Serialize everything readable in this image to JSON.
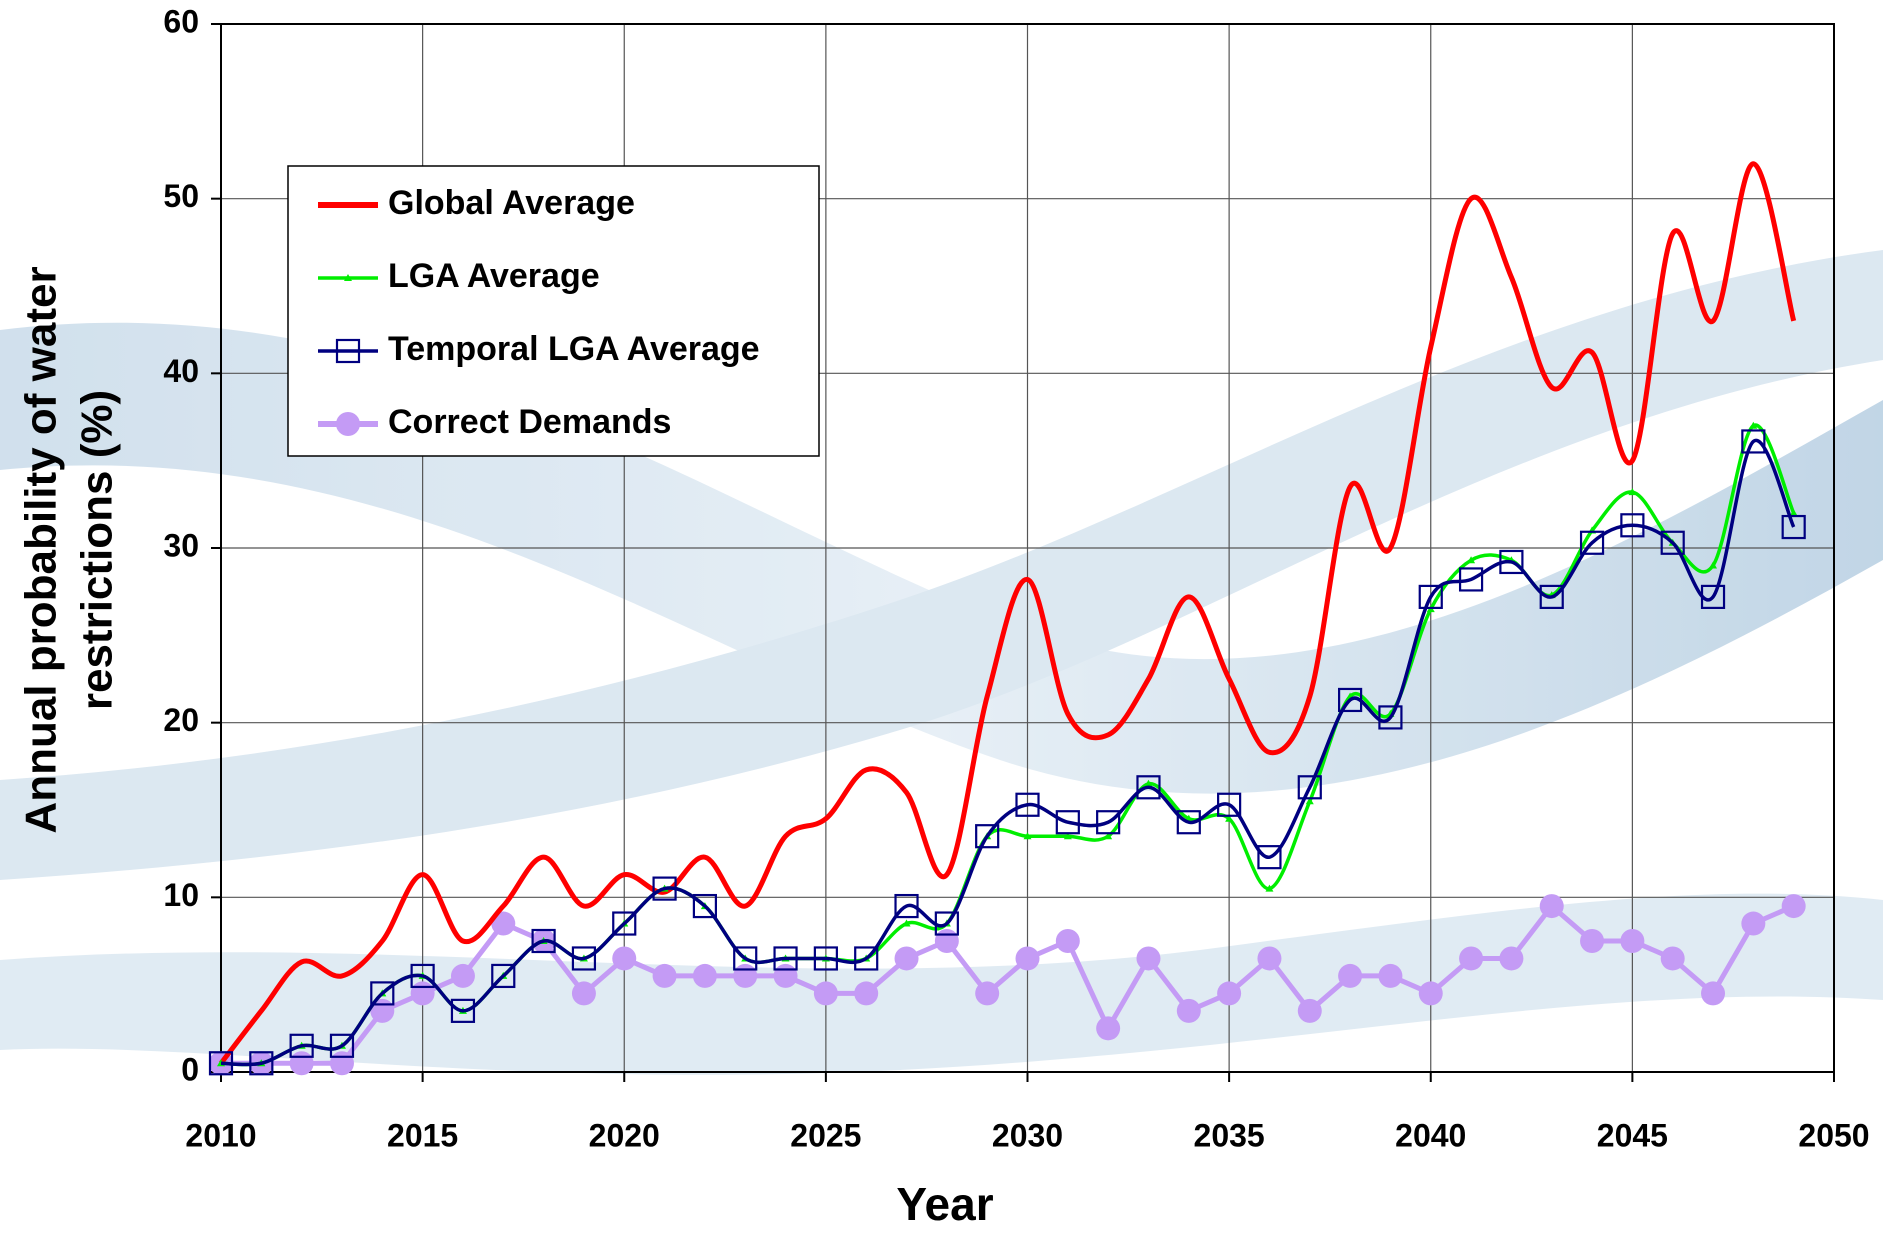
{
  "chart_data": {
    "type": "line",
    "x_label": "Year",
    "y_label": [
      "Annual probability of water",
      "restrictions (%)"
    ],
    "x": [
      2010,
      2011,
      2012,
      2013,
      2014,
      2015,
      2016,
      2017,
      2018,
      2019,
      2020,
      2021,
      2022,
      2023,
      2024,
      2025,
      2026,
      2027,
      2028,
      2029,
      2030,
      2031,
      2032,
      2033,
      2034,
      2035,
      2036,
      2037,
      2038,
      2039,
      2040,
      2041,
      2042,
      2043,
      2044,
      2045,
      2046,
      2047,
      2048,
      2049
    ],
    "xlim": [
      2010,
      2050
    ],
    "xticks": [
      2010,
      2015,
      2020,
      2025,
      2030,
      2035,
      2040,
      2045,
      2050
    ],
    "ylim": [
      0,
      60
    ],
    "yticks": [
      0,
      10,
      20,
      30,
      40,
      50,
      60
    ],
    "grid": true,
    "legend": "upper left",
    "series": [
      {
        "name": "Global Average",
        "color": "#ff0000",
        "marker": "none",
        "smooth": true,
        "values": [
          0.5,
          3.5,
          6.3,
          5.5,
          7.5,
          11.3,
          7.5,
          9.5,
          12.3,
          9.5,
          11.3,
          10.3,
          12.3,
          9.5,
          13.5,
          14.5,
          17.3,
          16,
          11.3,
          21.5,
          28.2,
          20.5,
          19.3,
          22.5,
          27.2,
          22.5,
          18.3,
          21.5,
          33.5,
          30,
          41.5,
          50,
          45.5,
          39.2,
          41.2,
          35,
          48,
          43,
          52,
          43
        ]
      },
      {
        "name": "LGA Average",
        "color": "#00ee00",
        "marker": "triangle",
        "smooth": true,
        "values": [
          0.5,
          0.5,
          1.5,
          1.5,
          4.5,
          5.5,
          3.5,
          5.5,
          7.5,
          6.5,
          8.5,
          10.5,
          9.5,
          6.5,
          6.5,
          6.5,
          6.5,
          8.5,
          8.5,
          13.5,
          13.5,
          13.5,
          13.5,
          16.5,
          14.5,
          14.5,
          10.5,
          15.5,
          21.5,
          20.5,
          26.5,
          29.3,
          29.3,
          27.3,
          31,
          33.2,
          30.3,
          29,
          37,
          32
        ]
      },
      {
        "name": "Temporal LGA Average",
        "color": "#000080",
        "marker": "square",
        "smooth": true,
        "values": [
          0.5,
          0.5,
          1.5,
          1.5,
          4.5,
          5.5,
          3.5,
          5.5,
          7.5,
          6.5,
          8.5,
          10.5,
          9.5,
          6.5,
          6.5,
          6.5,
          6.5,
          9.5,
          8.5,
          13.5,
          15.3,
          14.3,
          14.3,
          16.3,
          14.3,
          15.3,
          12.3,
          16.3,
          21.3,
          20.3,
          27.2,
          28.2,
          29.2,
          27.2,
          30.3,
          31.3,
          30.3,
          27.2,
          36.1,
          31.2
        ]
      },
      {
        "name": "Correct Demands",
        "color": "#c49bf5",
        "marker": "circle",
        "smooth": false,
        "values": [
          0.5,
          0.5,
          0.5,
          0.5,
          3.5,
          4.5,
          5.5,
          8.5,
          7.5,
          4.5,
          6.5,
          5.5,
          5.5,
          5.5,
          5.5,
          4.5,
          4.5,
          6.5,
          7.5,
          4.5,
          6.5,
          7.5,
          2.5,
          6.5,
          3.5,
          4.5,
          6.5,
          3.5,
          5.5,
          5.5,
          4.5,
          6.5,
          6.5,
          9.5,
          7.5,
          7.5,
          6.5,
          4.5,
          8.5,
          9.5
        ]
      }
    ]
  }
}
